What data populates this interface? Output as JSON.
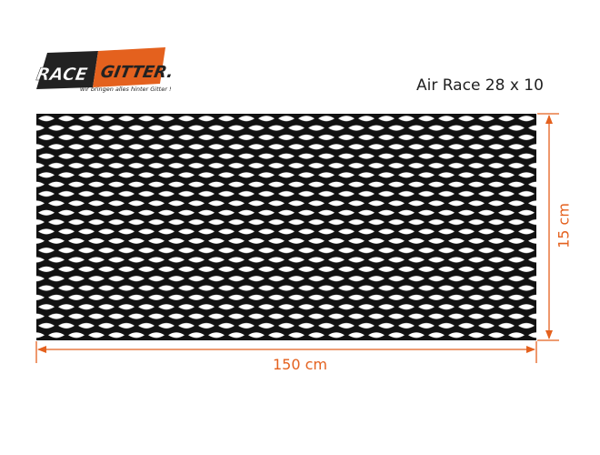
{
  "logo": {
    "text_left": "RACE",
    "text_right": "GITTER.DE",
    "slogan": "wir bringen alles hinter Gitter !"
  },
  "product": {
    "title": "Air Race 28 x 10"
  },
  "dimensions": {
    "width_label": "150 cm",
    "height_label": "15 cm"
  },
  "colors": {
    "accent": "#e4611e",
    "mesh": "#111111",
    "logo_dark": "#222222"
  },
  "icons": {
    "logo": "racegitter-logo"
  }
}
